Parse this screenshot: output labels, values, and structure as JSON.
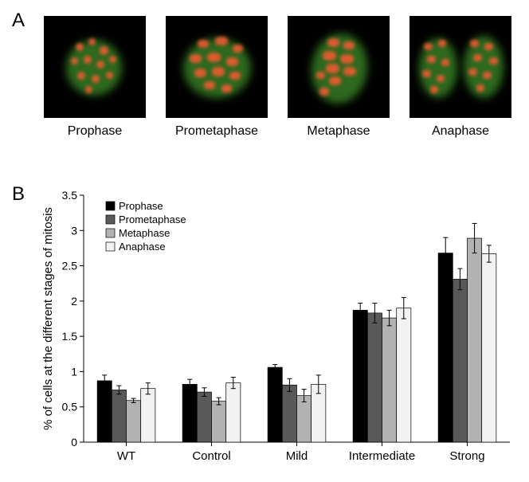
{
  "panelA": {
    "label": "A",
    "images": [
      {
        "name": "prophase-image",
        "caption": "Prophase"
      },
      {
        "name": "prometaphase-image",
        "caption": "Prometaphase"
      },
      {
        "name": "metaphase-image",
        "caption": "Metaphase"
      },
      {
        "name": "anaphase-image",
        "caption": "Anaphase"
      }
    ]
  },
  "panelB": {
    "label": "B",
    "chart": {
      "type": "bar",
      "y_title": "% of cells at the different stages of mitosis",
      "y_title_fontsize": 15,
      "ylim": [
        0,
        3.5
      ],
      "ytick_step": 0.5,
      "categories": [
        "WT",
        "Control",
        "Mild",
        "Intermediate",
        "Strong"
      ],
      "series": [
        {
          "name": "Prophase",
          "color": "#000000"
        },
        {
          "name": "Prometaphase",
          "color": "#595959"
        },
        {
          "name": "Metaphase",
          "color": "#b2b2b2"
        },
        {
          "name": "Anaphase",
          "color": "#f2f2f2"
        }
      ],
      "values": [
        [
          0.87,
          0.74,
          0.59,
          0.76
        ],
        [
          0.82,
          0.71,
          0.58,
          0.84
        ],
        [
          1.06,
          0.81,
          0.66,
          0.82
        ],
        [
          1.87,
          1.83,
          1.76,
          1.9
        ],
        [
          2.68,
          2.31,
          2.89,
          2.67
        ]
      ],
      "errors": [
        [
          0.08,
          0.06,
          0.03,
          0.08
        ],
        [
          0.07,
          0.06,
          0.05,
          0.08
        ],
        [
          0.04,
          0.09,
          0.09,
          0.13
        ],
        [
          0.1,
          0.14,
          0.11,
          0.15
        ],
        [
          0.22,
          0.15,
          0.21,
          0.12
        ]
      ],
      "label_fontsize": 15,
      "tick_fontsize": 14,
      "legend_fontsize": 13,
      "background_color": "#ffffff",
      "axis_color": "#000000",
      "bar_width_ratio": 0.17,
      "group_gap_ratio": 0.15
    }
  }
}
